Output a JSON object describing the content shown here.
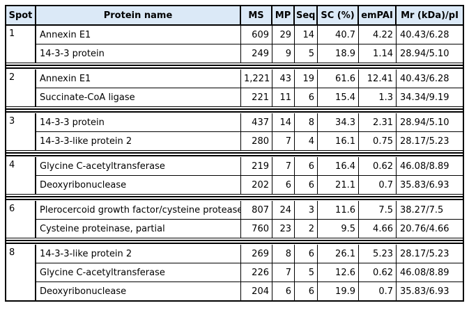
{
  "colors": {
    "header_bg": "#dbe9f7",
    "border": "#000000",
    "text": "#000000",
    "page_bg": "#ffffff"
  },
  "table": {
    "columns": [
      "Spot",
      "Protein name",
      "MS",
      "MP",
      "Seq",
      "SC (%)",
      "emPAI",
      "Mr (kDa)/pI"
    ],
    "groups": [
      {
        "spot": "1",
        "rows": [
          {
            "protein": "Annexin E1",
            "ms": "609",
            "mp": "29",
            "seq": "14",
            "sc": "40.7",
            "empai": "4.22",
            "mr": "40.43/6.28"
          },
          {
            "protein": "14-3-3 protein",
            "ms": "249",
            "mp": "9",
            "seq": "5",
            "sc": "18.9",
            "empai": "1.14",
            "mr": "28.94/5.10"
          }
        ]
      },
      {
        "spot": "2",
        "rows": [
          {
            "protein": "Annexin E1",
            "ms": "1,221",
            "mp": "43",
            "seq": "19",
            "sc": "61.6",
            "empai": "12.41",
            "mr": "40.43/6.28"
          },
          {
            "protein": "Succinate-CoA ligase",
            "ms": "221",
            "mp": "11",
            "seq": "6",
            "sc": "15.4",
            "empai": "1.3",
            "mr": "34.34/9.19"
          }
        ]
      },
      {
        "spot": "3",
        "rows": [
          {
            "protein": "14-3-3 protein",
            "ms": "437",
            "mp": "14",
            "seq": "8",
            "sc": "34.3",
            "empai": "2.31",
            "mr": "28.94/5.10"
          },
          {
            "protein": "14-3-3-like protein 2",
            "ms": "280",
            "mp": "7",
            "seq": "4",
            "sc": "16.1",
            "empai": "0.75",
            "mr": "28.17/5.23"
          }
        ]
      },
      {
        "spot": "4",
        "rows": [
          {
            "protein": "Glycine C-acetyltransferase",
            "ms": "219",
            "mp": "7",
            "seq": "6",
            "sc": "16.4",
            "empai": "0.62",
            "mr": "46.08/8.89"
          },
          {
            "protein": "Deoxyribonuclease",
            "ms": "202",
            "mp": "6",
            "seq": "6",
            "sc": "21.1",
            "empai": "0.7",
            "mr": "35.83/6.93"
          }
        ]
      },
      {
        "spot": "6",
        "rows": [
          {
            "protein": "Plerocercoid growth factor/cysteine protease",
            "ms": "807",
            "mp": "24",
            "seq": "3",
            "sc": "11.6",
            "empai": "7.5",
            "mr": "38.27/7.5"
          },
          {
            "protein": "Cysteine proteinase, partial",
            "ms": "760",
            "mp": "23",
            "seq": "2",
            "sc": "9.5",
            "empai": "4.66",
            "mr": "20.76/4.66"
          }
        ]
      },
      {
        "spot": "8",
        "rows": [
          {
            "protein": "14-3-3-like protein 2",
            "ms": "269",
            "mp": "8",
            "seq": "6",
            "sc": "26.1",
            "empai": "5.23",
            "mr": "28.17/5.23"
          },
          {
            "protein": "Glycine C-acetyltransferase",
            "ms": "226",
            "mp": "7",
            "seq": "5",
            "sc": "12.6",
            "empai": "0.62",
            "mr": "46.08/8.89"
          },
          {
            "protein": "Deoxyribonuclease",
            "ms": "204",
            "mp": "6",
            "seq": "6",
            "sc": "19.9",
            "empai": "0.7",
            "mr": "35.83/6.93"
          }
        ]
      }
    ]
  }
}
